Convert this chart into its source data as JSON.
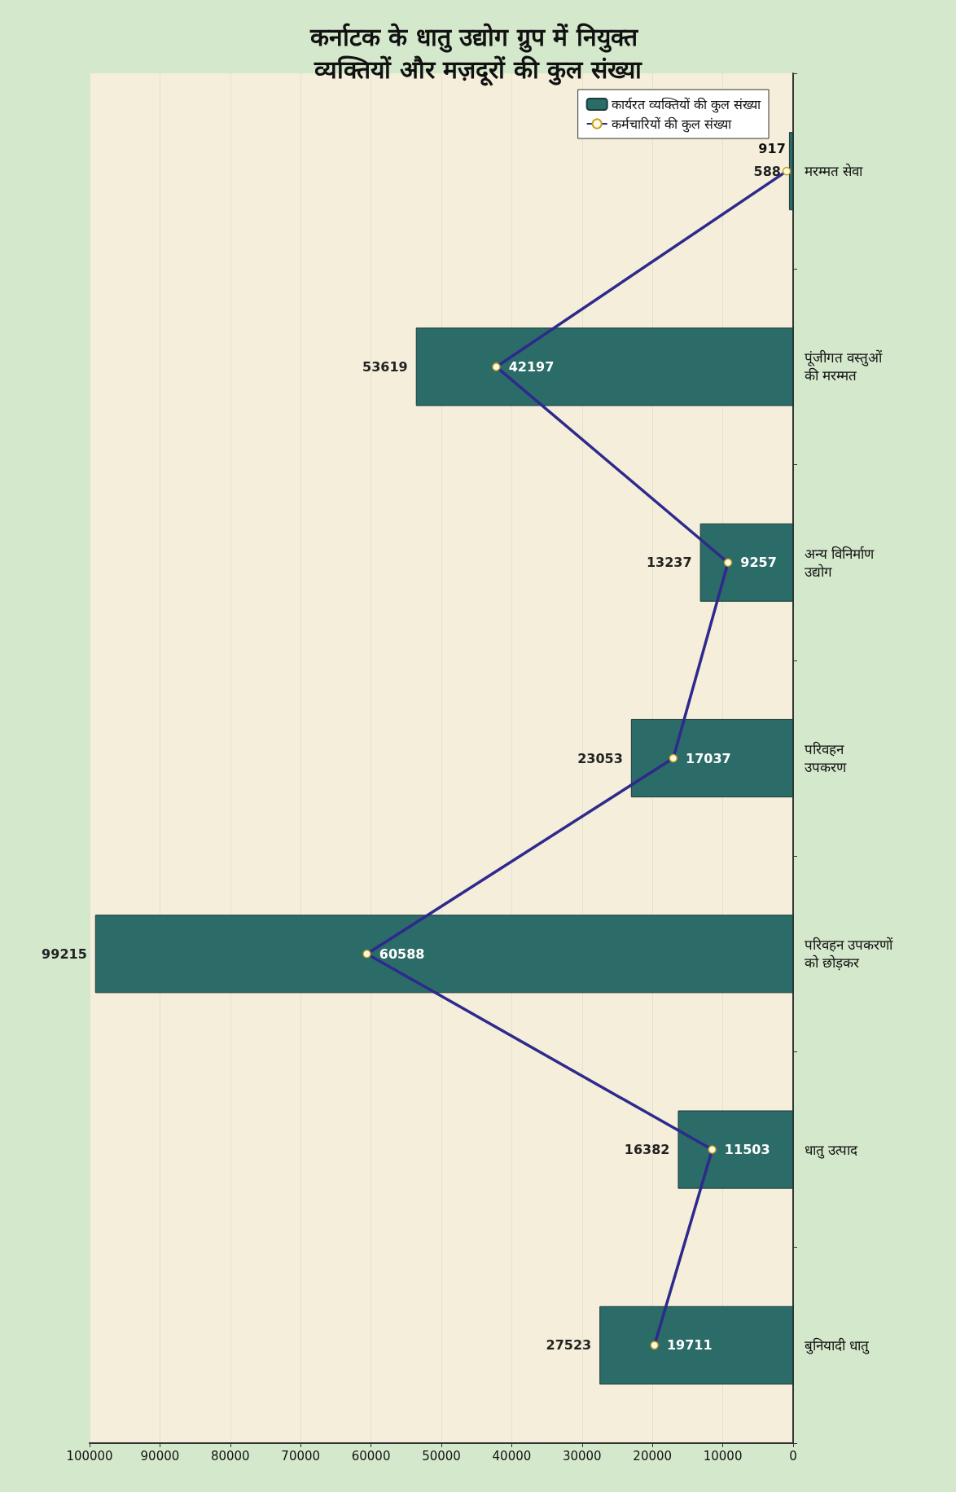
{
  "chart_data": {
    "type": "bar",
    "orientation": "horizontal",
    "title": "कर्नाटक के धातु उद्योग ग्रुप में नियुक्त व्यक्तियों और मज़दूरों की कुल संख्या",
    "categories": [
      "मरम्मत सेवा",
      "पूंजीगत वस्तुओं\nकी मरम्मत",
      "अन्य विनिर्माण\nउद्योग",
      "परिवहन\nउपकरण",
      "परिवहन उपकरणों\nको छोड़कर",
      "धातु उत्पाद",
      "बुनियादी धातु"
    ],
    "series": [
      {
        "name": "कार्यरत व्यक्तियों की कुल संख्या",
        "color": "#2b6b68",
        "values": [
          588,
          53619,
          13237,
          23053,
          99215,
          16382,
          27523
        ]
      },
      {
        "name": "कर्मचारियों की कुल संख्या",
        "type": "line",
        "color": "#2e2a8c",
        "values": [
          917,
          42197,
          9257,
          17037,
          60588,
          11503,
          19711
        ]
      }
    ],
    "xlim": [
      100000,
      0
    ],
    "xticks": [
      100000,
      90000,
      80000,
      70000,
      60000,
      50000,
      40000,
      30000,
      20000,
      10000,
      0
    ],
    "grid": "x",
    "legend": "top right",
    "marker": "circle",
    "line_style": "solid",
    "data_labels": true
  }
}
